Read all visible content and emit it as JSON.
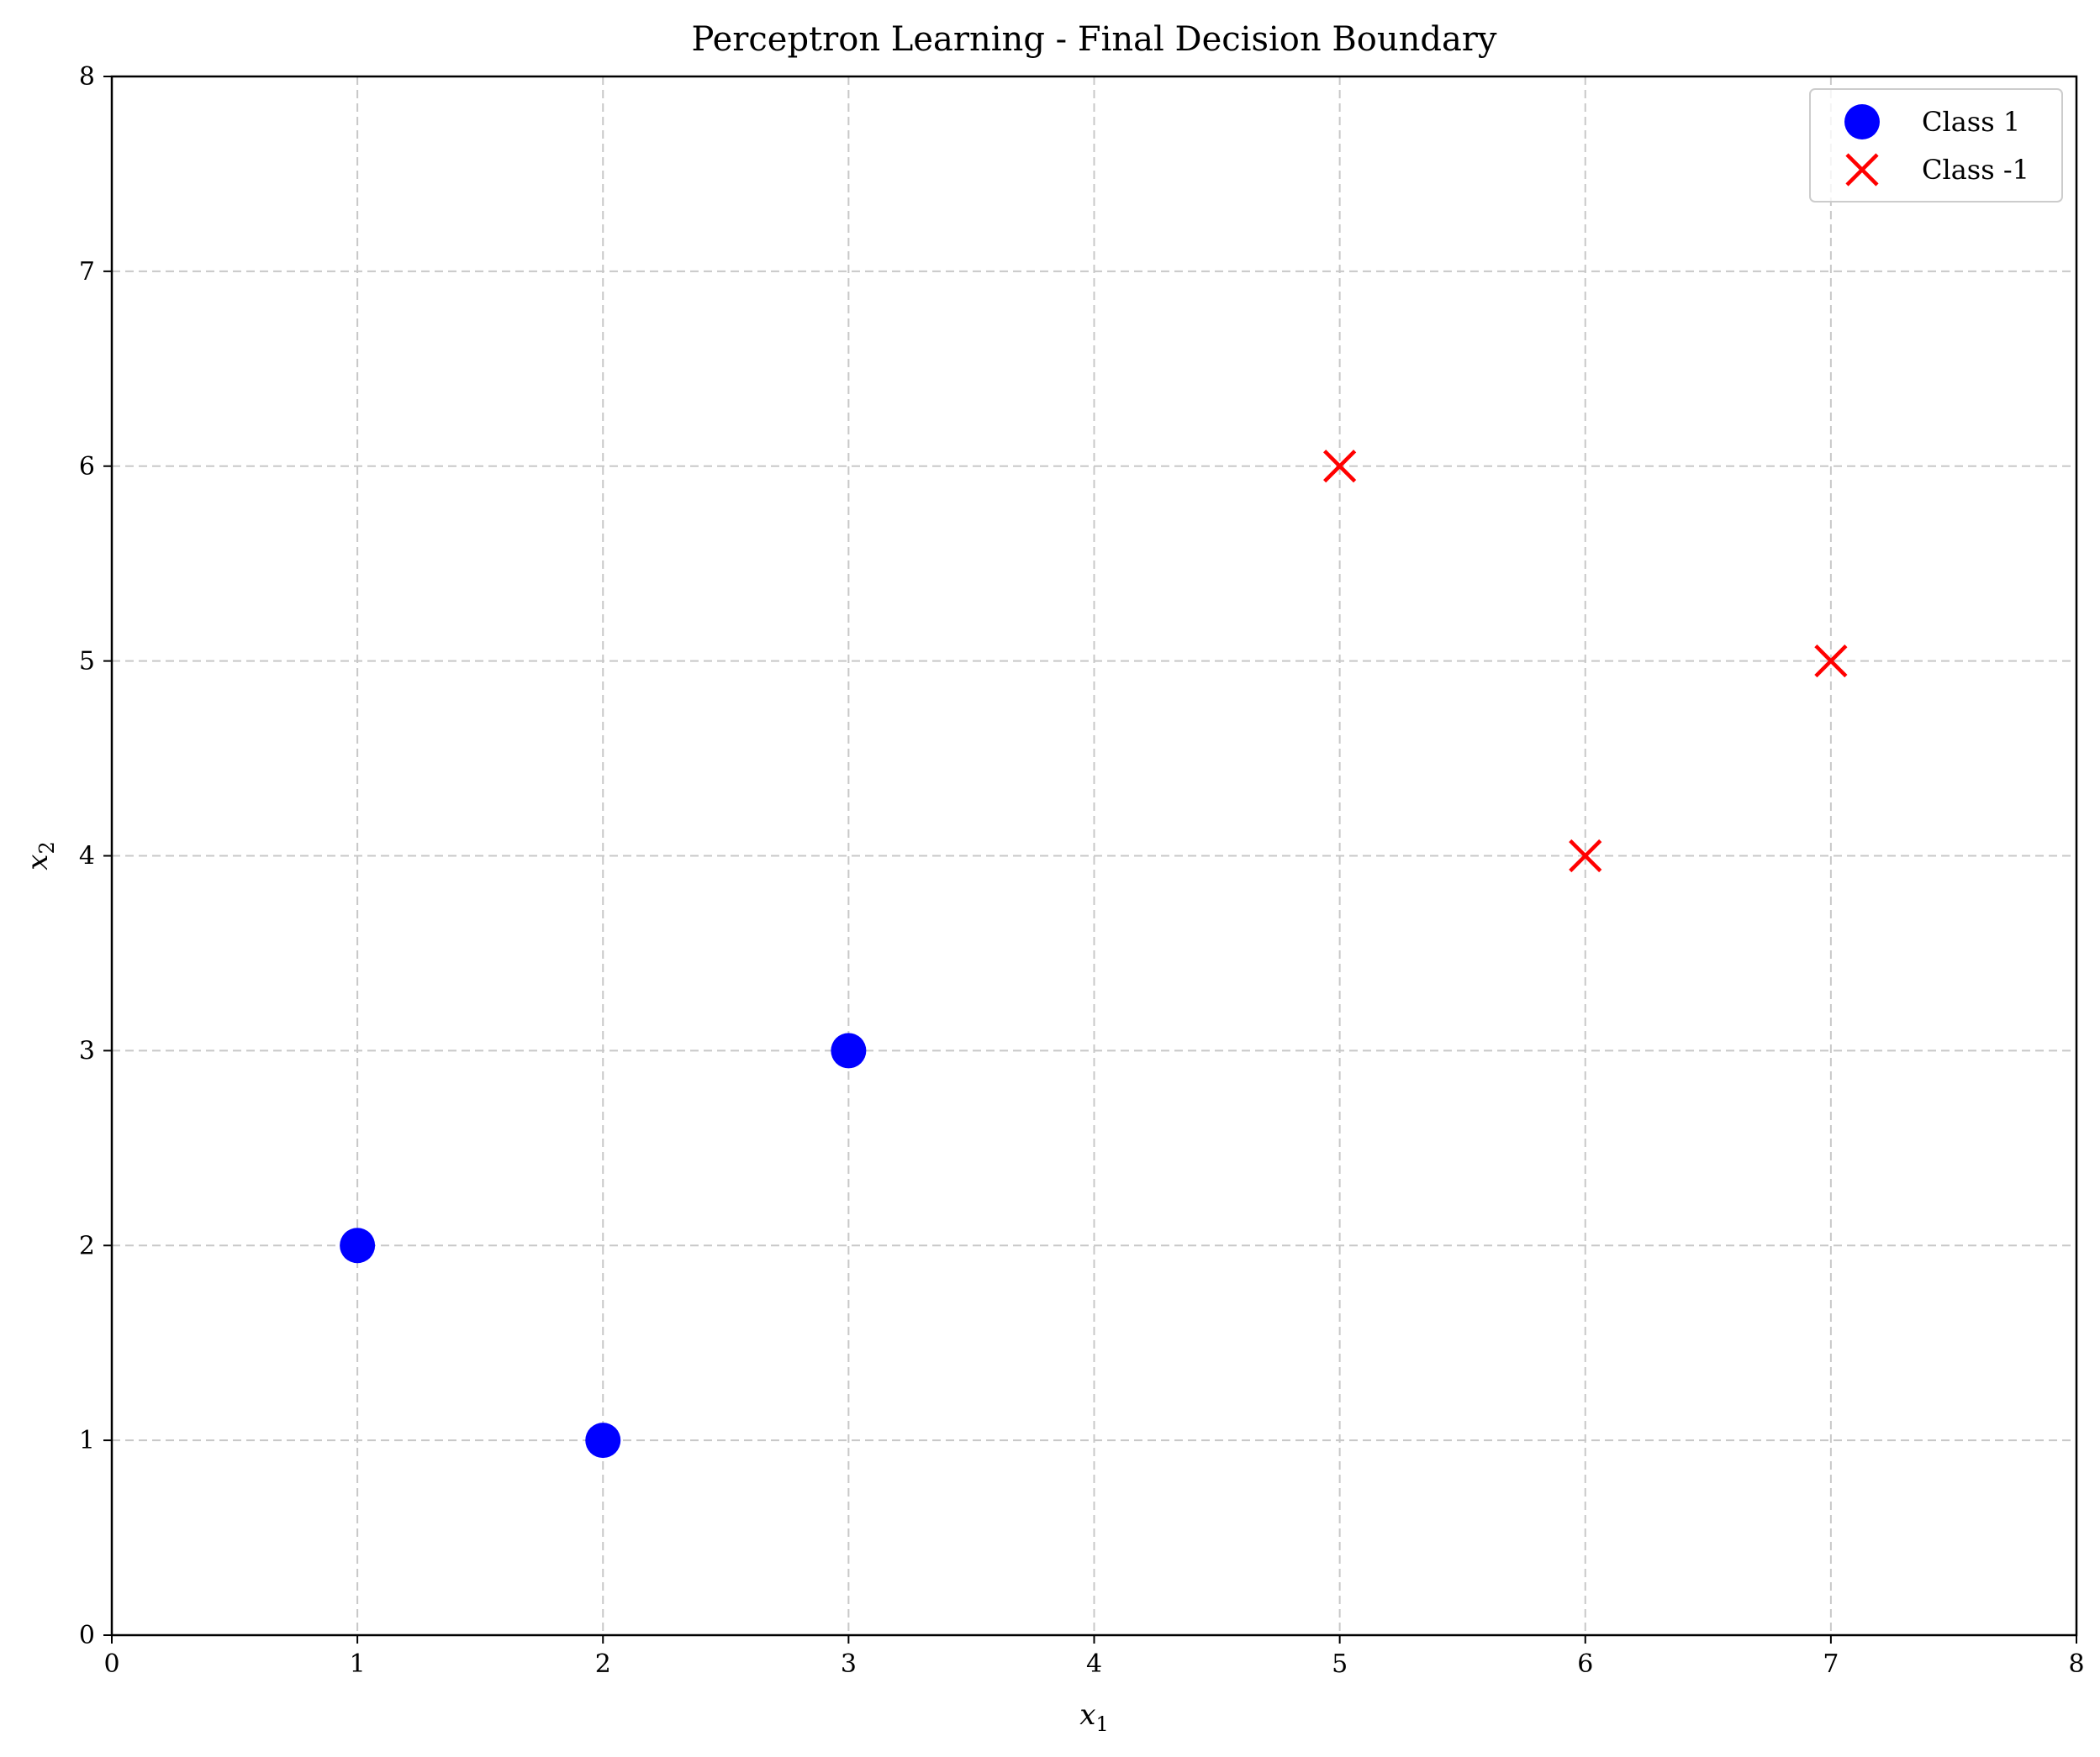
{
  "chart_data": {
    "type": "scatter",
    "title": "Perceptron Learning - Final Decision Boundary",
    "xlabel": "x",
    "xlabel_sub": "1",
    "ylabel": "x",
    "ylabel_sub": "2",
    "xlim": [
      0,
      8
    ],
    "ylim": [
      0,
      8
    ],
    "xticks": [
      "0",
      "1",
      "2",
      "3",
      "4",
      "5",
      "6",
      "7",
      "8"
    ],
    "yticks": [
      "0",
      "1",
      "2",
      "3",
      "4",
      "5",
      "6",
      "7",
      "8"
    ],
    "grid": true,
    "grid_style": "dashed",
    "legend_position": "top-right",
    "series": [
      {
        "name": "Class 1",
        "marker": "circle",
        "color": "#0000ff",
        "points": [
          [
            1,
            2
          ],
          [
            2,
            1
          ],
          [
            3,
            3
          ]
        ]
      },
      {
        "name": "Class -1",
        "marker": "x",
        "color": "#ff0000",
        "points": [
          [
            5,
            6
          ],
          [
            6,
            4
          ],
          [
            7,
            5
          ]
        ]
      }
    ]
  }
}
